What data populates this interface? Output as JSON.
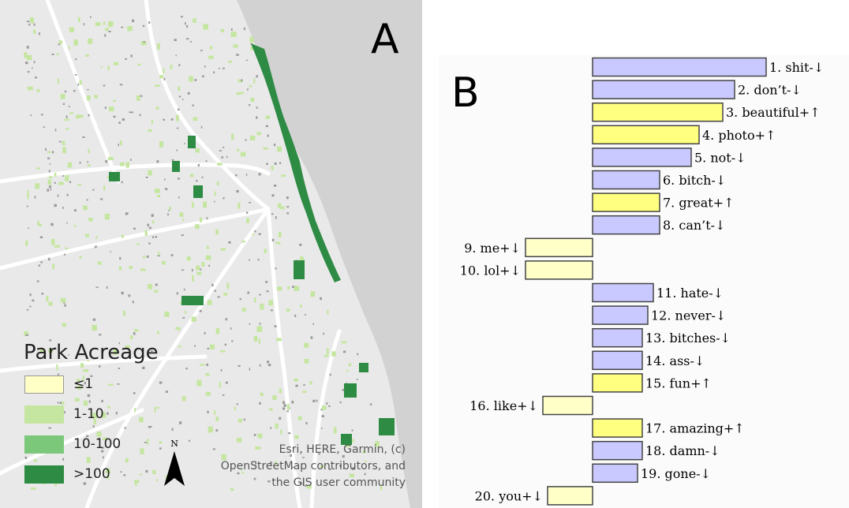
{
  "panel_a": {
    "letter": "A",
    "legend": {
      "title": "Park Acreage",
      "items": [
        {
          "label": "≤1",
          "color": "#ffffc6"
        },
        {
          "label": "1-10",
          "color": "#c5e6a0"
        },
        {
          "label": "10-100",
          "color": "#7cc87b"
        },
        {
          "label": ">100",
          "color": "#2e8b44"
        }
      ]
    },
    "north_label": "N",
    "attribution": [
      "Esri, HERE, Garmin, (c)",
      "OpenStreetMap contributors, and",
      "the GIS user community"
    ],
    "colors": {
      "land": "#e9e9e9",
      "water": "#d2d2d2",
      "road": "#ffffff"
    }
  },
  "panel_b": {
    "letter": "B",
    "colors": {
      "negative": "#c9c9ff",
      "positive": "#ffff80",
      "light_positive": "#ffffc8",
      "stroke": "#444444"
    },
    "chart_data": {
      "type": "bar",
      "orientation": "horizontal",
      "categories": [
        "1. shit-↓",
        "2. don’t-↓",
        "3. beautiful+↑",
        "4. photo+↑",
        "5. not-↓",
        "6. bitch-↓",
        "7. great+↑",
        "8. can’t-↓",
        "9. me+↓",
        "10. lol+↓",
        "11. hate-↓",
        "12. never-↓",
        "13. bitches-↓",
        "14. ass-↓",
        "15. fun+↑",
        "16. like+↓",
        "17. amazing+↑",
        "18. damn-↓",
        "19. gone-↓",
        "20. you+↓"
      ],
      "values": [
        2.2,
        1.8,
        1.65,
        1.35,
        1.25,
        0.85,
        0.85,
        0.85,
        -0.85,
        -0.85,
        0.77,
        0.7,
        0.63,
        0.63,
        0.63,
        -0.63,
        0.63,
        0.63,
        0.57,
        -0.57
      ],
      "bar_colors": [
        "negative",
        "negative",
        "positive",
        "positive",
        "negative",
        "negative",
        "positive",
        "negative",
        "light_positive",
        "light_positive",
        "negative",
        "negative",
        "negative",
        "negative",
        "positive",
        "light_positive",
        "positive",
        "negative",
        "negative",
        "light_positive"
      ]
    }
  }
}
